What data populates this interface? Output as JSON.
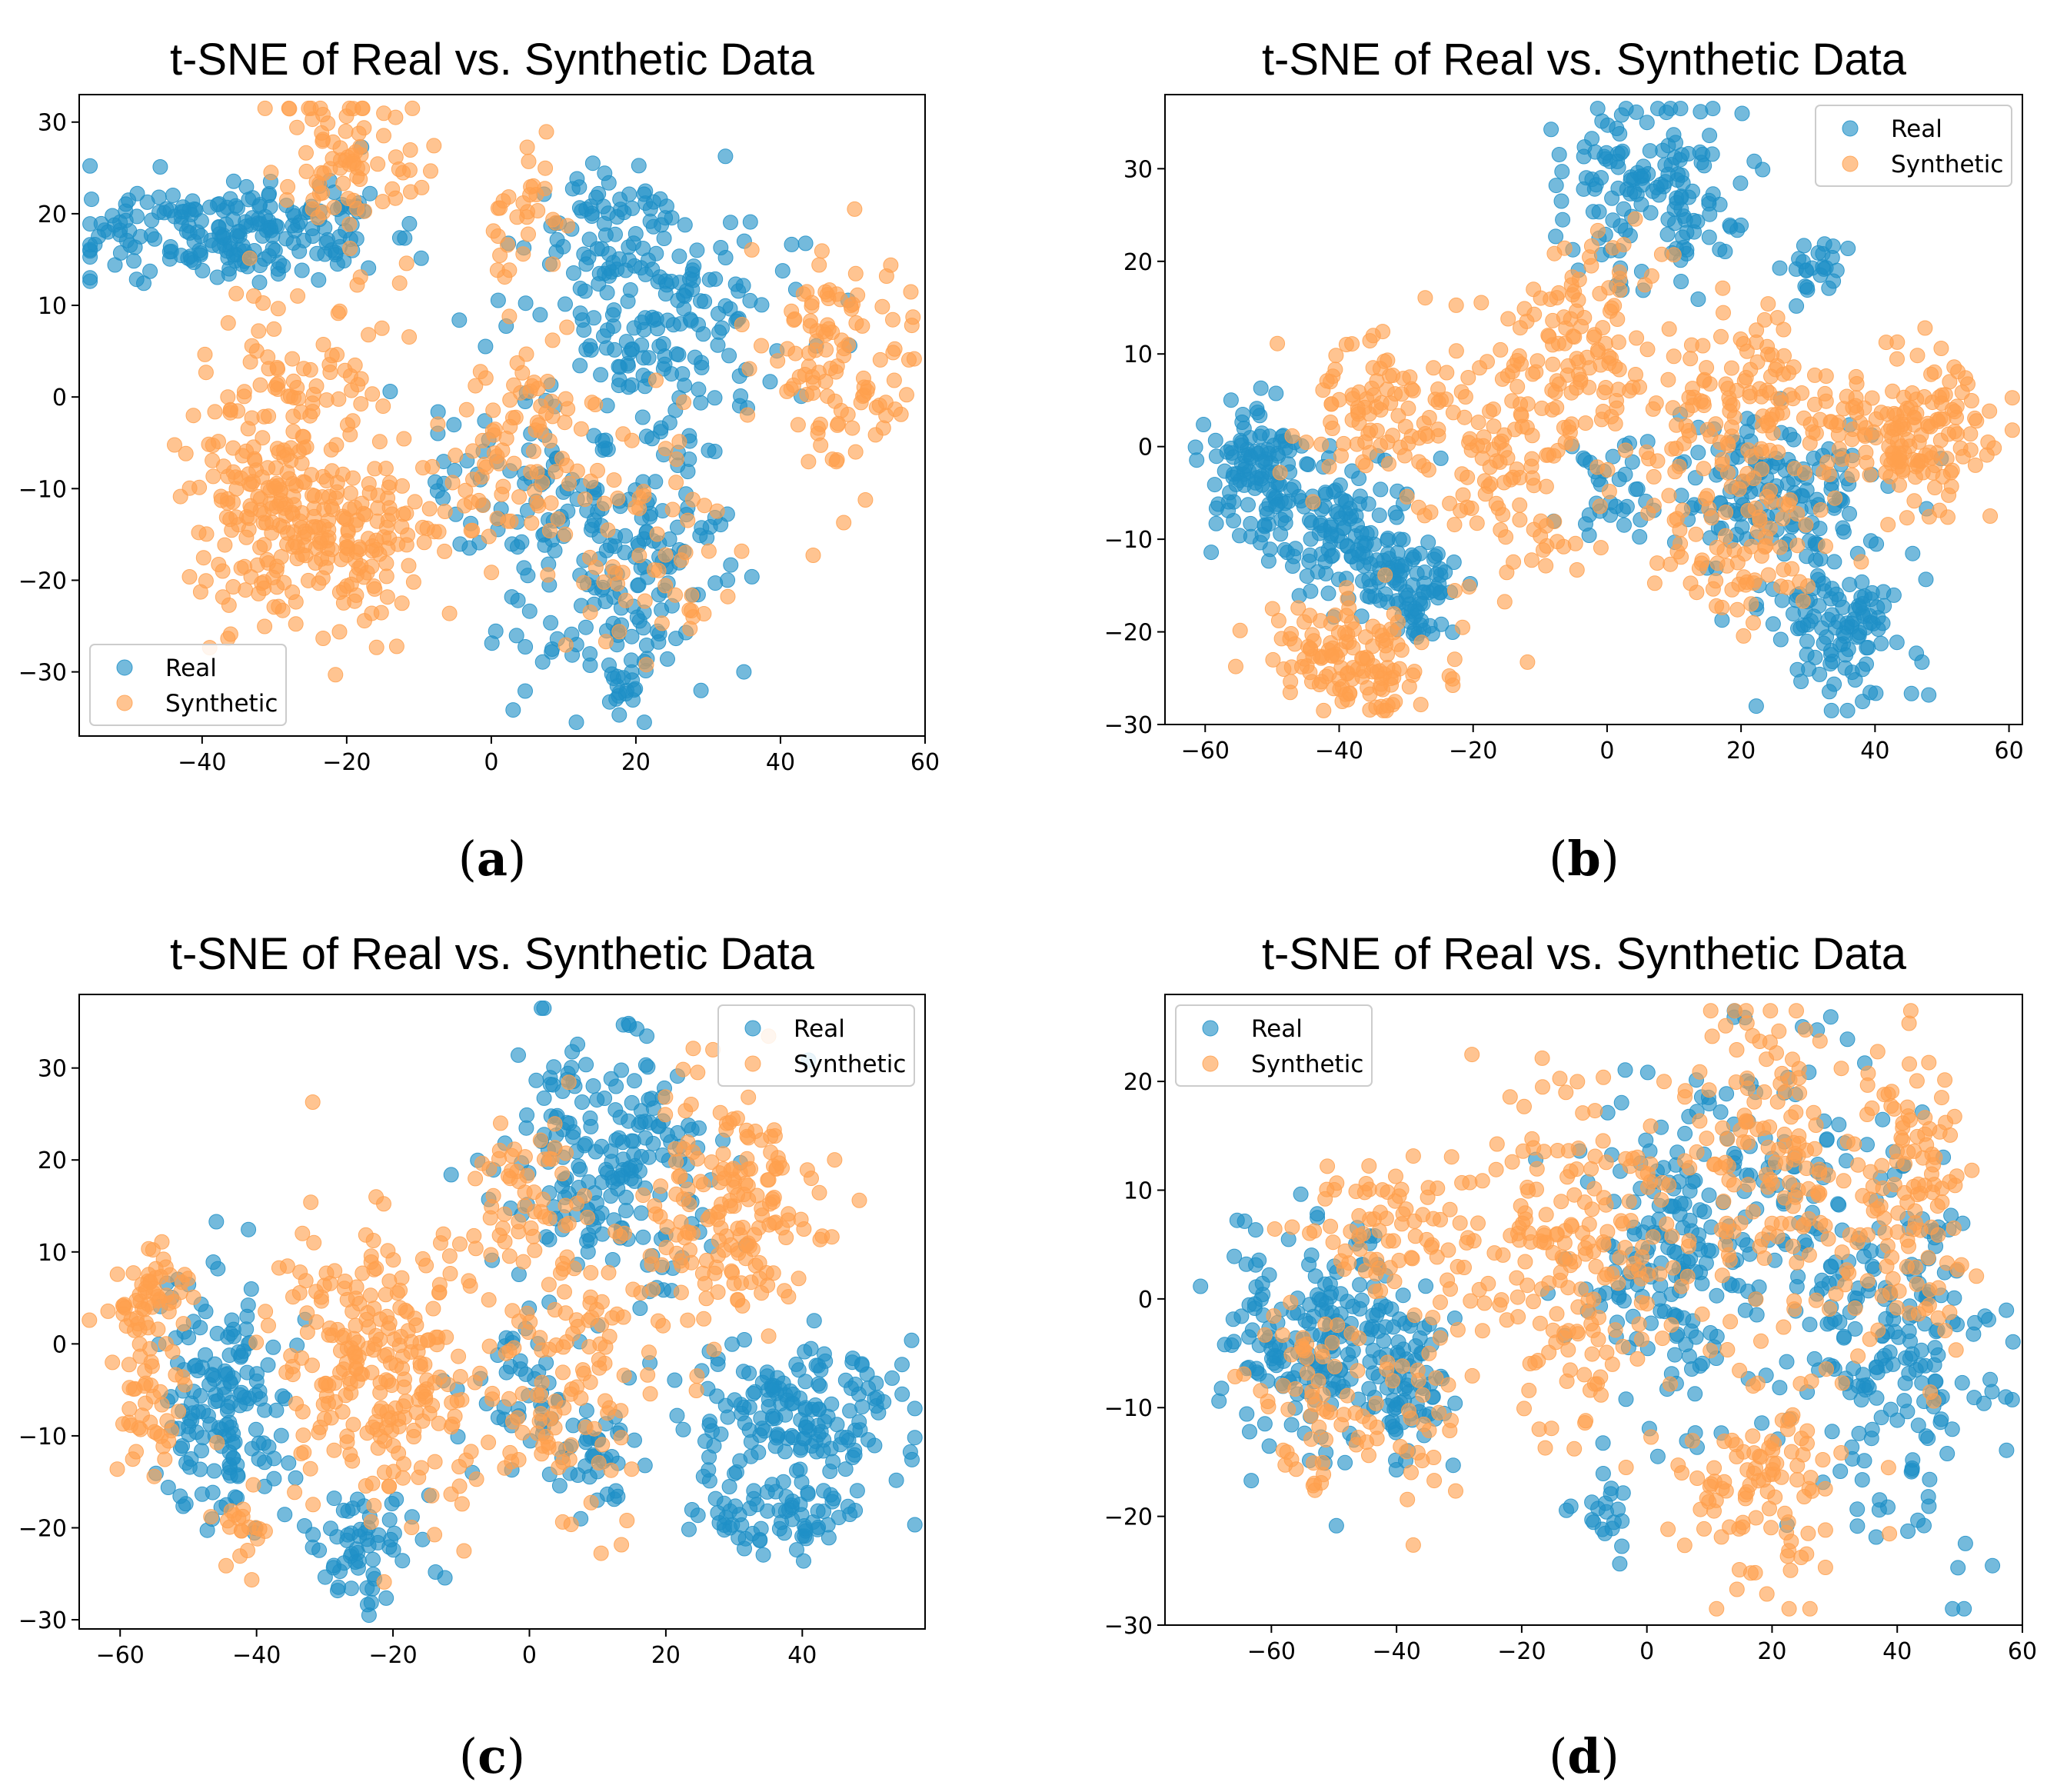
{
  "colors": {
    "real": "#1f8fc7",
    "synthetic": "#ffa04d"
  },
  "legend_labels": {
    "real": "Real",
    "synthetic": "Synthetic"
  },
  "chart_data": [
    {
      "panel": "a",
      "caption": {
        "open": "(",
        "letter": "a",
        "close": ")"
      },
      "type": "scatter",
      "title": "t-SNE of Real vs. Synthetic Data",
      "xlabel": "",
      "ylabel": "",
      "xlim": [
        -57,
        60
      ],
      "ylim": [
        -37,
        33
      ],
      "xticks": [
        -40,
        -20,
        0,
        20,
        40,
        60
      ],
      "xtick_labels": [
        "−40",
        "−20",
        "0",
        "20",
        "40",
        "60"
      ],
      "yticks": [
        -30,
        -20,
        -10,
        0,
        10,
        20,
        30
      ],
      "ytick_labels": [
        "−30",
        "−20",
        "−10",
        "0",
        "10",
        "20",
        "30"
      ],
      "legend_position": "bottom-left",
      "grid": false,
      "series": [
        {
          "name": "Real",
          "clusters": [
            {
              "cx": -38,
              "cy": 18,
              "sx": 9,
              "sy": 2.5,
              "n": 190
            },
            {
              "cx": -20,
              "cy": 19,
              "sx": 4,
              "sy": 3,
              "n": 25
            },
            {
              "cx": 18,
              "cy": 18,
              "sx": 7,
              "sy": 4,
              "n": 80
            },
            {
              "cx": 24,
              "cy": 7,
              "sx": 9,
              "sy": 6,
              "n": 150
            },
            {
              "cx": 18,
              "cy": -18,
              "sx": 8,
              "sy": 7,
              "n": 170
            },
            {
              "cx": 0,
              "cy": -8,
              "sx": 7,
              "sy": 5,
              "n": 50
            },
            {
              "cx": 18,
              "cy": -31,
              "sx": 2,
              "sy": 2.5,
              "n": 20
            }
          ]
        },
        {
          "name": "Synthetic",
          "clusters": [
            {
              "cx": -20,
              "cy": 25,
              "sx": 5,
              "sy": 4,
              "n": 80
            },
            {
              "cx": 4,
              "cy": 20,
              "sx": 3,
              "sy": 3,
              "n": 30
            },
            {
              "cx": -25,
              "cy": 3,
              "sx": 6,
              "sy": 5,
              "n": 70
            },
            {
              "cx": -32,
              "cy": -10,
              "sx": 5,
              "sy": 6,
              "n": 130
            },
            {
              "cx": -20,
              "cy": -16,
              "sx": 7,
              "sy": 5,
              "n": 170
            },
            {
              "cx": 3,
              "cy": -5,
              "sx": 6,
              "sy": 7,
              "n": 90
            },
            {
              "cx": 48,
              "cy": 3,
              "sx": 5,
              "sy": 6,
              "n": 110
            },
            {
              "cx": 20,
              "cy": -15,
              "sx": 8,
              "sy": 7,
              "n": 60
            }
          ]
        }
      ]
    },
    {
      "panel": "b",
      "caption": {
        "open": "(",
        "letter": "b",
        "close": ")"
      },
      "type": "scatter",
      "title": "t-SNE of Real vs. Synthetic Data",
      "xlabel": "",
      "ylabel": "",
      "xlim": [
        -66,
        62
      ],
      "ylim": [
        -30,
        38
      ],
      "xticks": [
        -60,
        -40,
        -20,
        0,
        20,
        40,
        60
      ],
      "xtick_labels": [
        "−60",
        "−40",
        "−20",
        "0",
        "20",
        "40",
        "60"
      ],
      "yticks": [
        -30,
        -20,
        -10,
        0,
        10,
        20,
        30
      ],
      "ytick_labels": [
        "−30",
        "−20",
        "−10",
        "0",
        "10",
        "20",
        "30"
      ],
      "legend_position": "top-right",
      "grid": false,
      "series": [
        {
          "name": "Real",
          "clusters": [
            {
              "cx": -52,
              "cy": -3,
              "sx": 4,
              "sy": 4,
              "n": 120
            },
            {
              "cx": -38,
              "cy": -10,
              "sx": 5,
              "sy": 4,
              "n": 120
            },
            {
              "cx": -28,
              "cy": -16,
              "sx": 3,
              "sy": 3,
              "n": 70
            },
            {
              "cx": 7,
              "cy": 28,
              "sx": 7,
              "sy": 5,
              "n": 150
            },
            {
              "cx": 25,
              "cy": -5,
              "sx": 8,
              "sy": 4,
              "n": 150
            },
            {
              "cx": 35,
              "cy": -19,
              "sx": 6,
              "sy": 4,
              "n": 110
            },
            {
              "cx": 30,
              "cy": 19,
              "sx": 3,
              "sy": 2,
              "n": 25
            },
            {
              "cx": 0,
              "cy": -5,
              "sx": 4,
              "sy": 4,
              "n": 30
            }
          ]
        },
        {
          "name": "Synthetic",
          "clusters": [
            {
              "cx": -38,
              "cy": -23,
              "sx": 7,
              "sy": 3,
              "n": 130
            },
            {
              "cx": -35,
              "cy": 3,
              "sx": 6,
              "sy": 4,
              "n": 90
            },
            {
              "cx": -14,
              "cy": 0,
              "sx": 7,
              "sy": 8,
              "n": 140
            },
            {
              "cx": -3,
              "cy": 12,
              "sx": 5,
              "sy": 5,
              "n": 80
            },
            {
              "cx": 22,
              "cy": 3,
              "sx": 9,
              "sy": 6,
              "n": 160
            },
            {
              "cx": 46,
              "cy": 1,
              "sx": 6,
              "sy": 4,
              "n": 150
            },
            {
              "cx": 20,
              "cy": -13,
              "sx": 6,
              "sy": 3,
              "n": 60
            }
          ]
        }
      ]
    },
    {
      "panel": "c",
      "caption": {
        "open": "(",
        "letter": "c",
        "close": ")"
      },
      "type": "scatter",
      "title": "t-SNE of Real vs. Synthetic Data",
      "xlabel": "",
      "ylabel": "",
      "xlim": [
        -66,
        58
      ],
      "ylim": [
        -31,
        38
      ],
      "xticks": [
        -60,
        -40,
        -20,
        0,
        20,
        40
      ],
      "xtick_labels": [
        "−60",
        "−40",
        "−20",
        "0",
        "20",
        "40"
      ],
      "yticks": [
        -30,
        -20,
        -10,
        0,
        10,
        20,
        30
      ],
      "ytick_labels": [
        "−30",
        "−20",
        "−10",
        "0",
        "10",
        "20",
        "30"
      ],
      "legend_position": "top-right",
      "grid": false,
      "series": [
        {
          "name": "Real",
          "clusters": [
            {
              "cx": -45,
              "cy": -6,
              "sx": 5,
              "sy": 7,
              "n": 160
            },
            {
              "cx": -25,
              "cy": -22,
              "sx": 4,
              "sy": 3,
              "n": 60
            },
            {
              "cx": 12,
              "cy": 20,
              "sx": 8,
              "sy": 7,
              "n": 200
            },
            {
              "cx": 38,
              "cy": -8,
              "sx": 9,
              "sy": 4,
              "n": 170
            },
            {
              "cx": 38,
              "cy": -19,
              "sx": 7,
              "sy": 2,
              "n": 70
            },
            {
              "cx": 8,
              "cy": -13,
              "sx": 4,
              "sy": 3,
              "n": 40
            },
            {
              "cx": -3,
              "cy": -6,
              "sx": 5,
              "sy": 4,
              "n": 40
            }
          ]
        },
        {
          "name": "Synthetic",
          "clusters": [
            {
              "cx": -55,
              "cy": 5,
              "sx": 3,
              "sy": 3,
              "n": 60
            },
            {
              "cx": -55,
              "cy": -7,
              "sx": 3,
              "sy": 4,
              "n": 40
            },
            {
              "cx": -22,
              "cy": -2,
              "sx": 8,
              "sy": 8,
              "n": 250
            },
            {
              "cx": 5,
              "cy": -2,
              "sx": 7,
              "sy": 8,
              "n": 120
            },
            {
              "cx": 30,
              "cy": 15,
              "sx": 7,
              "sy": 6,
              "n": 170
            },
            {
              "cx": 0,
              "cy": 17,
              "sx": 4,
              "sy": 5,
              "n": 50
            },
            {
              "cx": -42,
              "cy": -20,
              "sx": 2,
              "sy": 2,
              "n": 20
            }
          ]
        }
      ]
    },
    {
      "panel": "d",
      "caption": {
        "open": "(",
        "letter": "d",
        "close": ")"
      },
      "type": "scatter",
      "title": "t-SNE of Real vs. Synthetic Data",
      "xlabel": "",
      "ylabel": "",
      "xlim": [
        -77,
        60
      ],
      "ylim": [
        -30,
        28
      ],
      "xticks": [
        -60,
        -40,
        -20,
        0,
        20,
        40,
        60
      ],
      "xtick_labels": [
        "−60",
        "−40",
        "−20",
        "0",
        "20",
        "40",
        "60"
      ],
      "yticks": [
        -30,
        -20,
        -10,
        0,
        10,
        20
      ],
      "ytick_labels": [
        "−30",
        "−20",
        "−10",
        "0",
        "10",
        "20"
      ],
      "legend_position": "top-left",
      "grid": false,
      "series": [
        {
          "name": "Real",
          "clusters": [
            {
              "cx": -52,
              "cy": -3,
              "sx": 8,
              "sy": 5,
              "n": 200
            },
            {
              "cx": -38,
              "cy": -8,
              "sx": 4,
              "sy": 4,
              "n": 60
            },
            {
              "cx": 2,
              "cy": 3,
              "sx": 8,
              "sy": 7,
              "n": 150
            },
            {
              "cx": 20,
              "cy": 10,
              "sx": 8,
              "sy": 8,
              "n": 100
            },
            {
              "cx": 40,
              "cy": -5,
              "sx": 8,
              "sy": 9,
              "n": 200
            },
            {
              "cx": -7,
              "cy": -20,
              "sx": 2,
              "sy": 2,
              "n": 20
            }
          ]
        },
        {
          "name": "Synthetic",
          "clusters": [
            {
              "cx": -40,
              "cy": 5,
              "sx": 7,
              "sy": 4,
              "n": 80
            },
            {
              "cx": -55,
              "cy": -10,
              "sx": 5,
              "sy": 5,
              "n": 60
            },
            {
              "cx": -12,
              "cy": 3,
              "sx": 9,
              "sy": 8,
              "n": 200
            },
            {
              "cx": 20,
              "cy": 12,
              "sx": 7,
              "sy": 8,
              "n": 150
            },
            {
              "cx": 18,
              "cy": -18,
              "sx": 6,
              "sy": 5,
              "n": 100
            },
            {
              "cx": 42,
              "cy": 8,
              "sx": 5,
              "sy": 8,
              "n": 120
            },
            {
              "cx": -38,
              "cy": -12,
              "sx": 5,
              "sy": 3,
              "n": 30
            }
          ]
        }
      ]
    }
  ]
}
